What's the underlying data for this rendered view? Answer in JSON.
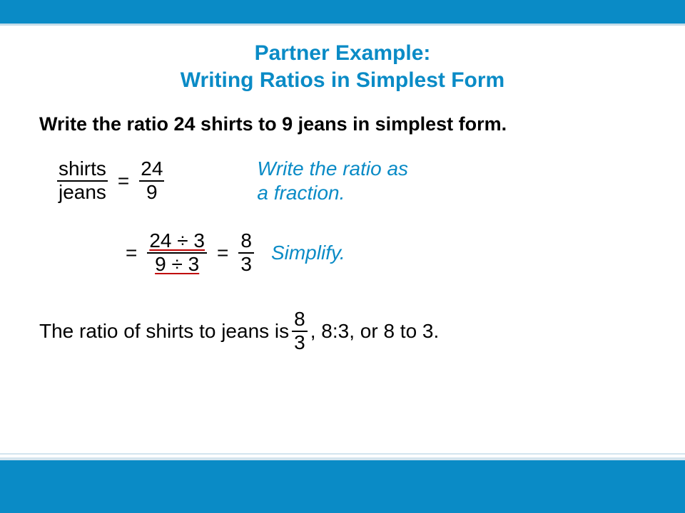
{
  "colors": {
    "brand": "#0a8bc6",
    "accent_border": "#c5dce8",
    "text": "#000000",
    "underline_red": "#c00000",
    "background": "#ffffff"
  },
  "title": {
    "line1": "Partner Example:",
    "line2": "Writing Ratios in Simplest Form",
    "fontsize": 30
  },
  "prompt": "Write the ratio 24 shirts to 9 jeans in simplest form.",
  "step1": {
    "label_num": "shirts",
    "label_den": "jeans",
    "eq": "=",
    "value_num": "24",
    "value_den": "9",
    "annotation_line1": "Write the ratio as",
    "annotation_line2": "a fraction."
  },
  "step2": {
    "eq": "=",
    "num": "24 ÷ 3",
    "den": "9 ÷ 3",
    "eq2": "=",
    "result_num": "8",
    "result_den": "3",
    "annotation": "Simplify."
  },
  "conclusion": {
    "pre": "The ratio of shirts to jeans is ",
    "frac_num": "8",
    "frac_den": "3",
    "post": ", 8:3, or 8 to 3."
  }
}
